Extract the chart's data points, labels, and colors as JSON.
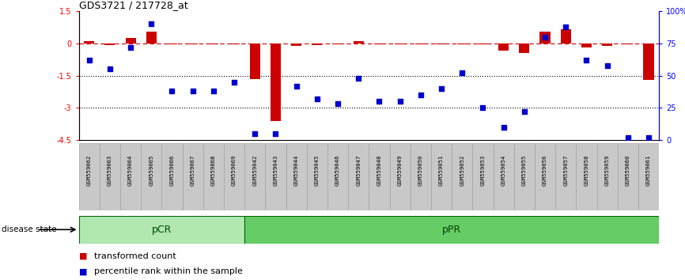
{
  "title": "GDS3721 / 217728_at",
  "samples": [
    "GSM559062",
    "GSM559063",
    "GSM559064",
    "GSM559065",
    "GSM559066",
    "GSM559067",
    "GSM559068",
    "GSM559069",
    "GSM559042",
    "GSM559043",
    "GSM559044",
    "GSM559045",
    "GSM559046",
    "GSM559047",
    "GSM559048",
    "GSM559049",
    "GSM559050",
    "GSM559051",
    "GSM559052",
    "GSM559053",
    "GSM559054",
    "GSM559055",
    "GSM559056",
    "GSM559057",
    "GSM559058",
    "GSM559059",
    "GSM559060",
    "GSM559061"
  ],
  "red_values": [
    0.12,
    -0.08,
    0.25,
    0.55,
    -0.05,
    -0.03,
    -0.05,
    -0.05,
    -1.65,
    -3.6,
    -0.12,
    -0.08,
    -0.05,
    0.12,
    -0.05,
    -0.05,
    -0.05,
    -0.05,
    -0.05,
    -0.05,
    -0.35,
    -0.45,
    0.55,
    0.65,
    -0.2,
    -0.12,
    -0.05,
    -1.7
  ],
  "blue_values": [
    62,
    55,
    72,
    90,
    38,
    38,
    38,
    45,
    5,
    5,
    42,
    32,
    28,
    48,
    30,
    30,
    35,
    40,
    52,
    25,
    10,
    22,
    80,
    88,
    62,
    58,
    2,
    2
  ],
  "pCR_count": 8,
  "pPR_count": 20,
  "pCR_label": "pCR",
  "pPR_label": "pPR",
  "disease_state_label": "disease state",
  "ylim_left": [
    -4.5,
    1.5
  ],
  "ylim_right": [
    0,
    100
  ],
  "red_color": "#cc0000",
  "blue_color": "#0000cc",
  "pCR_color": "#b0e8b0",
  "pPR_color": "#66cc66",
  "legend_red": "transformed count",
  "legend_blue": "percentile rank within the sample"
}
